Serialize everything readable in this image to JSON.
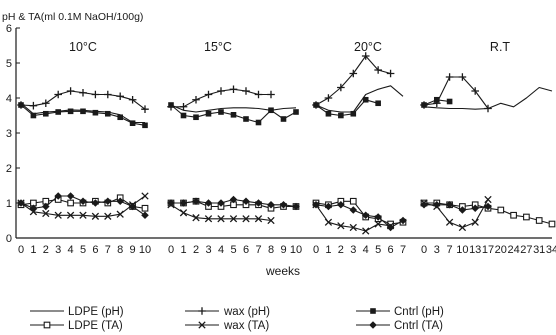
{
  "chart_data": {
    "type": "line",
    "ylabel": "pH & TA(ml 0.1M NaOH/100g)",
    "xlabel": "weeks",
    "ylim": [
      0,
      6
    ],
    "yticks": [
      "0",
      "1",
      "2",
      "3",
      "4",
      "5",
      "6"
    ],
    "grid": false,
    "legend_position": "bottom",
    "legend": [
      {
        "name": "LDPE (pH)",
        "marker": "none"
      },
      {
        "name": "LDPE (TA)",
        "marker": "square-open"
      },
      {
        "name": "wax (pH)",
        "marker": "plus"
      },
      {
        "name": "wax (TA)",
        "marker": "x"
      },
      {
        "name": "Cntrl (pH)",
        "marker": "square-filled"
      },
      {
        "name": "Cntrl (TA)",
        "marker": "diamond-filled"
      }
    ],
    "panels": [
      {
        "label": "10°C",
        "x_tick_labels": [
          "0",
          "1",
          "2",
          "3",
          "4",
          "5",
          "6",
          "7",
          "8",
          "9",
          "10"
        ],
        "series": [
          {
            "name": "LDPE (pH)",
            "y": [
              3.85,
              3.55,
              3.6,
              3.62,
              3.66,
              3.65,
              3.62,
              3.6,
              3.52,
              3.3,
              3.3
            ]
          },
          {
            "name": "wax (pH)",
            "y": [
              3.8,
              3.78,
              3.85,
              4.1,
              4.2,
              4.15,
              4.1,
              4.1,
              4.05,
              3.95,
              3.68
            ]
          },
          {
            "name": "Cntrl (pH)",
            "y": [
              3.8,
              3.5,
              3.55,
              3.6,
              3.62,
              3.62,
              3.58,
              3.55,
              3.45,
              3.28,
              3.22
            ]
          },
          {
            "name": "LDPE (TA)",
            "y": [
              0.95,
              1.0,
              1.05,
              1.1,
              1.0,
              1.0,
              1.05,
              1.0,
              1.15,
              0.9,
              0.85
            ]
          },
          {
            "name": "wax (TA)",
            "y": [
              1.0,
              0.75,
              0.7,
              0.65,
              0.65,
              0.65,
              0.62,
              0.62,
              0.68,
              0.95,
              1.2
            ]
          },
          {
            "name": "Cntrl (TA)",
            "y": [
              1.0,
              0.85,
              0.9,
              1.2,
              1.2,
              1.05,
              1.0,
              1.05,
              1.05,
              0.9,
              0.65
            ]
          }
        ]
      },
      {
        "label": "15°C",
        "x_tick_labels": [
          "0",
          "1",
          "2",
          "3",
          "4",
          "5",
          "6",
          "7",
          "8",
          "9",
          "10"
        ],
        "series": [
          {
            "name": "LDPE (pH)",
            "y": [
              3.8,
              3.65,
              3.6,
              3.65,
              3.7,
              3.72,
              3.72,
              3.7,
              3.65,
              3.7,
              3.72
            ]
          },
          {
            "name": "wax (pH)",
            "y": [
              3.75,
              3.75,
              3.95,
              4.1,
              4.2,
              4.25,
              4.2,
              4.1,
              4.1,
              null,
              null
            ]
          },
          {
            "name": "Cntrl (pH)",
            "y": [
              3.8,
              3.5,
              3.45,
              3.55,
              3.6,
              3.52,
              3.4,
              3.3,
              3.65,
              3.4,
              3.6
            ]
          },
          {
            "name": "LDPE (TA)",
            "y": [
              1.0,
              1.0,
              1.05,
              0.9,
              0.9,
              0.95,
              0.95,
              0.95,
              0.85,
              0.9,
              0.9
            ]
          },
          {
            "name": "wax (TA)",
            "y": [
              0.95,
              0.72,
              0.58,
              0.55,
              0.55,
              0.55,
              0.55,
              0.55,
              0.5,
              null,
              null
            ]
          },
          {
            "name": "Cntrl (TA)",
            "y": [
              1.0,
              1.0,
              1.05,
              1.0,
              1.0,
              1.1,
              1.05,
              1.0,
              0.95,
              0.95,
              0.9
            ]
          }
        ]
      },
      {
        "label": "20°C",
        "x_tick_labels": [
          "0",
          "1",
          "2",
          "3",
          "4",
          "5",
          "6",
          "7"
        ],
        "series": [
          {
            "name": "LDPE (pH)",
            "y": [
              3.8,
              3.65,
              3.6,
              3.6,
              4.1,
              4.25,
              4.35,
              4.05
            ]
          },
          {
            "name": "wax (pH)",
            "y": [
              3.8,
              4.0,
              4.3,
              4.7,
              5.2,
              4.8,
              4.7,
              null
            ]
          },
          {
            "name": "Cntrl (pH)",
            "y": [
              3.8,
              3.55,
              3.5,
              3.55,
              3.95,
              3.85,
              null,
              null
            ]
          },
          {
            "name": "LDPE (TA)",
            "y": [
              1.0,
              0.95,
              1.05,
              1.05,
              0.6,
              0.55,
              0.4,
              0.45
            ]
          },
          {
            "name": "wax (TA)",
            "y": [
              0.95,
              0.45,
              0.35,
              0.3,
              0.2,
              0.4,
              0.35,
              null
            ]
          },
          {
            "name": "Cntrl (TA)",
            "y": [
              0.95,
              0.9,
              0.95,
              0.8,
              0.65,
              0.6,
              0.3,
              0.5
            ]
          }
        ]
      },
      {
        "label": "R.T",
        "x_tick_labels": [
          "0",
          "3",
          "7",
          "10",
          "13",
          "17",
          "20",
          "24",
          "27",
          "31",
          "34"
        ],
        "series": [
          {
            "name": "LDPE (pH)",
            "y": [
              3.75,
              3.72,
              3.7,
              3.7,
              3.68,
              3.7,
              3.85,
              3.75,
              4.0,
              4.3,
              4.2
            ]
          },
          {
            "name": "wax (pH)",
            "y": [
              3.8,
              3.85,
              4.6,
              4.6,
              4.2,
              3.7,
              null,
              null,
              null,
              null,
              null
            ]
          },
          {
            "name": "Cntrl (pH)",
            "y": [
              3.8,
              3.95,
              3.9,
              null,
              null,
              null,
              null,
              null,
              null,
              null,
              null
            ]
          },
          {
            "name": "LDPE (TA)",
            "y": [
              1.0,
              1.0,
              0.95,
              0.9,
              0.95,
              0.85,
              0.8,
              0.65,
              0.6,
              0.5,
              0.4
            ]
          },
          {
            "name": "wax (TA)",
            "y": [
              1.0,
              0.9,
              0.45,
              0.3,
              0.45,
              1.1,
              null,
              null,
              null,
              null,
              null
            ]
          },
          {
            "name": "Cntrl (TA)",
            "y": [
              0.95,
              0.95,
              0.95,
              0.8,
              0.85,
              0.9,
              null,
              null,
              null,
              null,
              null
            ]
          }
        ]
      }
    ]
  }
}
